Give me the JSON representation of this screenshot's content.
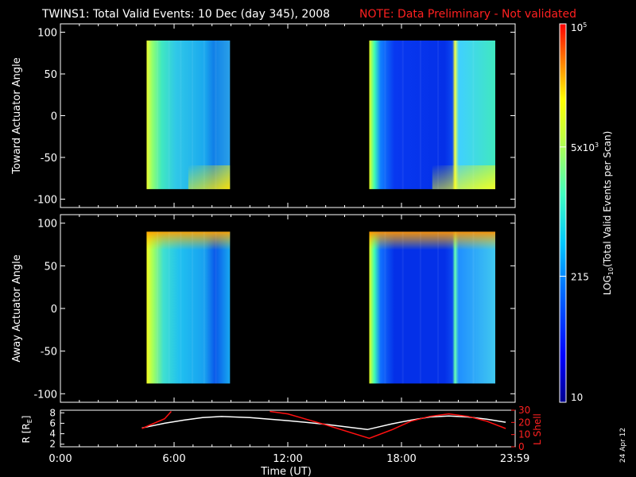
{
  "title": {
    "main": "TWINS1: Total Valid Events: 10 Dec (day 345), 2008",
    "note": "NOTE: Data Preliminary - Not validated",
    "note_color": "#ff2020"
  },
  "footer": {
    "date_stamp": "24 Apr 12"
  },
  "colorbar": {
    "label": "LOG10(Total Valid Events per Scan)",
    "label_main": "LOG",
    "label_sub": "10",
    "label_rest": "(Total Valid Events per Scan)",
    "scale": "log",
    "range": [
      10,
      100000
    ],
    "ticks": [
      {
        "value": 10,
        "label": "10"
      },
      {
        "value": 215,
        "label": "215"
      },
      {
        "value": 5000,
        "label": "5x10",
        "sup": "3"
      },
      {
        "value": 100000,
        "label": "10",
        "sup": "5"
      }
    ],
    "colormap": [
      "#00008f",
      "#0000ff",
      "#0080ff",
      "#00ffff",
      "#80ff80",
      "#ffff00",
      "#ff8000",
      "#ff0000"
    ]
  },
  "chart_data": [
    {
      "type": "heatmap",
      "ylabel": "Toward Actuator Angle",
      "ylim": [
        -110,
        110
      ],
      "yticks": [
        100,
        50,
        0,
        -50,
        -100
      ],
      "x_hours": [
        0,
        24
      ],
      "angle_range": [
        -88,
        90
      ],
      "passes": [
        {
          "start_hour": 4.55,
          "end_hour": 8.95,
          "dominant": "cyan-green",
          "edge": "yellow-green at start"
        },
        {
          "start_hour": 16.3,
          "end_hour": 22.95,
          "dominant": "blue",
          "edge": "yellow at start, yellow streak near 21:10"
        }
      ]
    },
    {
      "type": "heatmap",
      "ylabel": "Away Actuator Angle",
      "ylim": [
        -110,
        110
      ],
      "yticks": [
        100,
        50,
        0,
        -50,
        -100
      ],
      "x_hours": [
        0,
        24
      ],
      "angle_range": [
        -88,
        90
      ],
      "passes": [
        {
          "start_hour": 4.55,
          "end_hour": 8.95,
          "dominant": "cyan",
          "edge": "yellow at start, orange band near +90"
        },
        {
          "start_hour": 16.3,
          "end_hour": 22.95,
          "dominant": "blue",
          "edge": "yellow at start, orange band near +90"
        }
      ]
    },
    {
      "type": "line",
      "ylabel": "R [RE]",
      "ylabel_main": "R [R",
      "ylabel_sub": "E",
      "ylabel_end": "]",
      "y2label": "L Shell",
      "ylim": [
        1.5,
        8.5
      ],
      "yticks": [
        2,
        4,
        6,
        8
      ],
      "y2lim": [
        0,
        30
      ],
      "y2ticks": [
        0,
        10,
        20,
        30
      ],
      "xlabel": "Time (UT)",
      "xticks": [
        {
          "hour": 0,
          "label": "0:00"
        },
        {
          "hour": 6,
          "label": "6:00"
        },
        {
          "hour": 12,
          "label": "12:00"
        },
        {
          "hour": 18,
          "label": "18:00"
        },
        {
          "hour": 23.983,
          "label": "23:59"
        }
      ],
      "series": [
        {
          "color": "#ffffff",
          "axis": "left",
          "x": [
            4.3,
            5.5,
            6.5,
            7.5,
            8.5,
            10,
            12,
            14,
            16.2,
            17.5,
            18.5,
            19.5,
            20.5,
            21.5,
            22.5,
            23.5
          ],
          "y": [
            5.1,
            6.0,
            6.6,
            7.1,
            7.3,
            7.1,
            6.5,
            5.8,
            4.8,
            5.9,
            6.6,
            7.2,
            7.4,
            7.2,
            6.8,
            6.2
          ]
        },
        {
          "color": "#ff1010",
          "axis": "right",
          "x": [
            4.3,
            5.5,
            5.85,
            null,
            11.05,
            12,
            14,
            16.3,
            17.5,
            18.5,
            19.5,
            20.5,
            21.5,
            22.5,
            23.5
          ],
          "y": [
            15.0,
            23.0,
            29.0,
            null,
            29.0,
            27.0,
            18.0,
            7.0,
            14.0,
            21.0,
            25.0,
            27.0,
            25.0,
            21.0,
            15.0
          ]
        }
      ]
    }
  ]
}
